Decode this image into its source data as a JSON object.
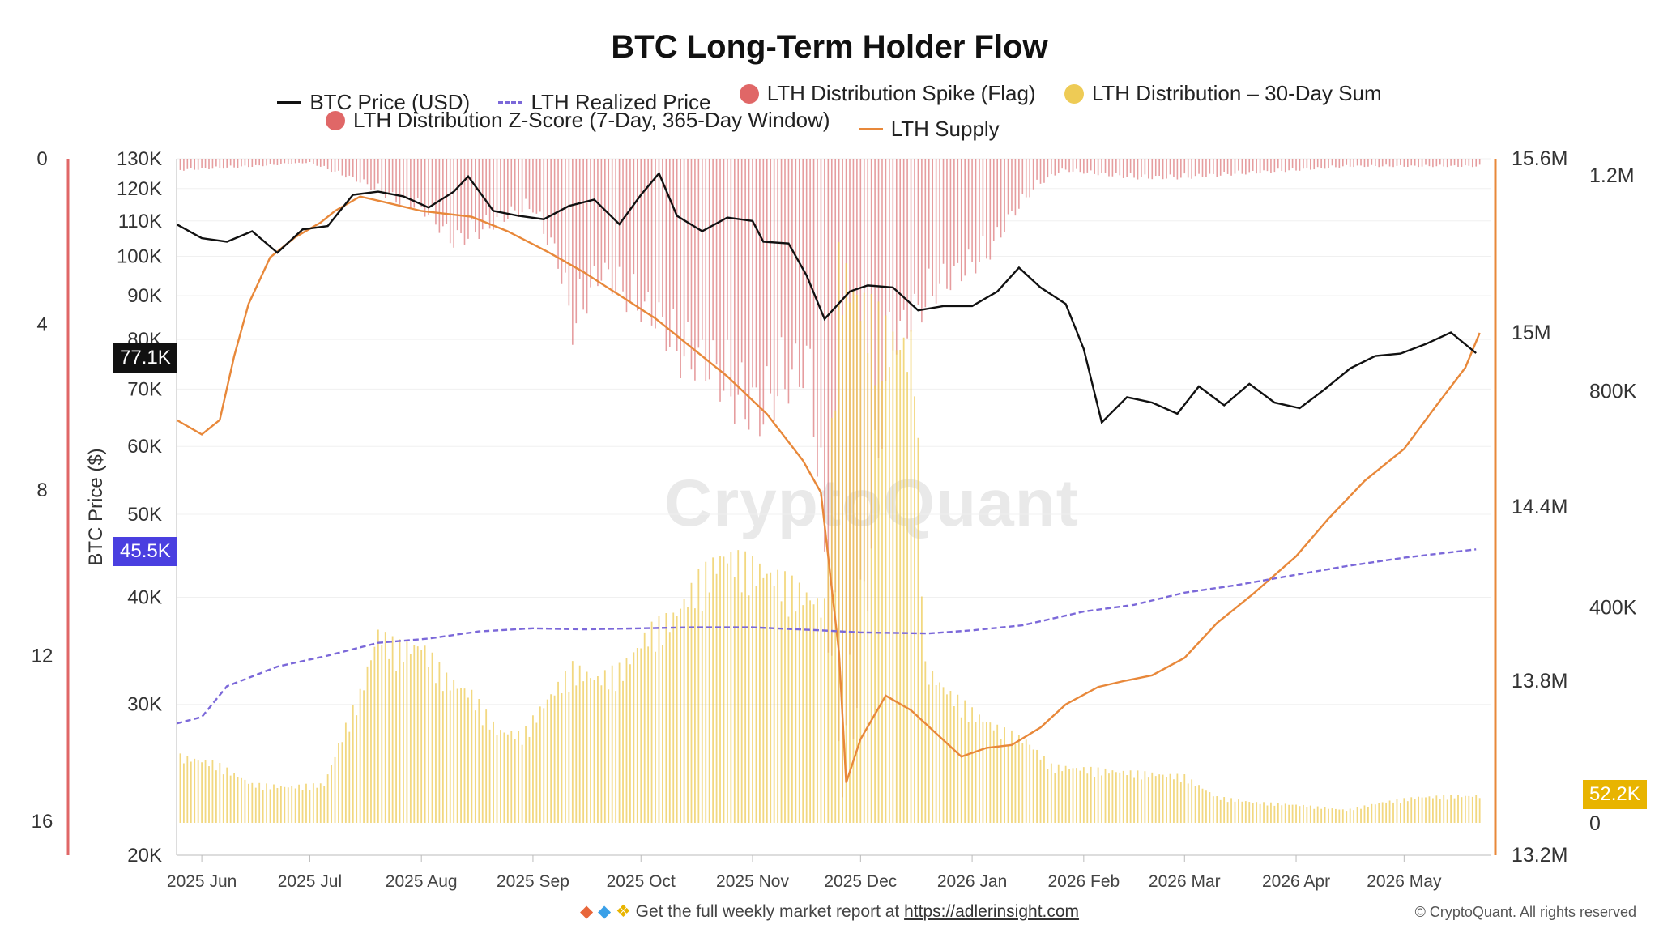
{
  "title": "BTC Long-Term Holder Flow",
  "legend": [
    {
      "label": "BTC Price (USD)",
      "kind": "line",
      "color": "#111111"
    },
    {
      "label": "LTH Realized Price",
      "kind": "dash",
      "color": "#7b68d9"
    },
    {
      "label": "LTH Distribution Spike (Flag)",
      "kind": "dot",
      "color": "#e06767"
    },
    {
      "label": "LTH Distribution – 30-Day Sum",
      "kind": "dot",
      "color": "#eecb55"
    },
    {
      "label": "LTH Distribution Z-Score (7-Day, 365-Day Window)",
      "kind": "dot",
      "color": "#e06767"
    },
    {
      "label": "LTH Supply",
      "kind": "line",
      "color": "#e8883a"
    }
  ],
  "watermark": "CryptoQuant",
  "footer": {
    "icons": [
      "orange-diamond-icon",
      "blue-gem-icon",
      "raised-hands-icon"
    ],
    "text": "Get the full weekly market report at ",
    "link": "https://adlerinsight.com"
  },
  "copyright": "© CryptoQuant. All rights reserved",
  "badges": {
    "btc_price": "77.1K",
    "realized_price": "45.5K",
    "distribution_sum": "52.2K"
  },
  "chart_data": {
    "type": "line",
    "x_ticks": [
      "2025 Jun",
      "2025 Jul",
      "2025 Aug",
      "2025 Sep",
      "2025 Oct",
      "2025 Nov",
      "2025 Dec",
      "2026 Jan",
      "2026 Feb",
      "2026 Mar",
      "2026 Apr",
      "2026 May"
    ],
    "x_range": [
      "2025-05-25",
      "2026-05-25"
    ],
    "axes": {
      "zscore": {
        "label": "",
        "ticks": [
          "0",
          "4",
          "8",
          "12",
          "16"
        ],
        "range": [
          0,
          16
        ],
        "inverted": true
      },
      "btc_price": {
        "label": "BTC Price ($)",
        "scale": "log",
        "range": [
          20000,
          130000
        ],
        "ticks": [
          "130K",
          "120K",
          "110K",
          "100K",
          "90K",
          "80K",
          "70K",
          "60K",
          "50K",
          "40K",
          "30K",
          "20K"
        ],
        "tick_values": [
          130000,
          120000,
          110000,
          100000,
          90000,
          80000,
          70000,
          60000,
          50000,
          40000,
          30000,
          20000
        ]
      },
      "lth_supply": {
        "label": "",
        "range": [
          13200000,
          15600000
        ],
        "ticks": [
          "15.6M",
          "15M",
          "14.4M",
          "13.8M",
          "13.2M"
        ],
        "tick_values": [
          15600000,
          15000000,
          14400000,
          13800000,
          13200000
        ]
      },
      "distribution_sum": {
        "label": "",
        "range": [
          0,
          1200000
        ],
        "ticks": [
          "1.2M",
          "800K",
          "400K",
          "0"
        ],
        "tick_values": [
          1200000,
          800000,
          400000,
          0
        ]
      }
    },
    "series": [
      {
        "name": "BTC Price (USD)",
        "axis": "btc_price",
        "points": [
          [
            "2025-05-25",
            109000
          ],
          [
            "2025-06-01",
            105000
          ],
          [
            "2025-06-08",
            104000
          ],
          [
            "2025-06-15",
            107000
          ],
          [
            "2025-06-22",
            101000
          ],
          [
            "2025-06-29",
            107500
          ],
          [
            "2025-07-06",
            108500
          ],
          [
            "2025-07-13",
            118000
          ],
          [
            "2025-07-20",
            119000
          ],
          [
            "2025-07-27",
            117500
          ],
          [
            "2025-08-03",
            114000
          ],
          [
            "2025-08-10",
            119000
          ],
          [
            "2025-08-14",
            124000
          ],
          [
            "2025-08-21",
            113000
          ],
          [
            "2025-08-28",
            111500
          ],
          [
            "2025-09-04",
            110500
          ],
          [
            "2025-09-11",
            114500
          ],
          [
            "2025-09-18",
            116500
          ],
          [
            "2025-09-25",
            109000
          ],
          [
            "2025-10-01",
            118000
          ],
          [
            "2025-10-06",
            125000
          ],
          [
            "2025-10-11",
            111500
          ],
          [
            "2025-10-18",
            107000
          ],
          [
            "2025-10-25",
            111000
          ],
          [
            "2025-11-01",
            110000
          ],
          [
            "2025-11-04",
            104000
          ],
          [
            "2025-11-11",
            103500
          ],
          [
            "2025-11-16",
            95000
          ],
          [
            "2025-11-21",
            84500
          ],
          [
            "2025-11-28",
            91000
          ],
          [
            "2025-12-03",
            92500
          ],
          [
            "2025-12-10",
            92000
          ],
          [
            "2025-12-17",
            86500
          ],
          [
            "2025-12-24",
            87500
          ],
          [
            "2026-01-01",
            87500
          ],
          [
            "2026-01-08",
            91000
          ],
          [
            "2026-01-14",
            97000
          ],
          [
            "2026-01-20",
            92000
          ],
          [
            "2026-01-27",
            88000
          ],
          [
            "2026-02-01",
            78000
          ],
          [
            "2026-02-06",
            64000
          ],
          [
            "2026-02-13",
            68500
          ],
          [
            "2026-02-20",
            67500
          ],
          [
            "2026-02-27",
            65500
          ],
          [
            "2026-03-05",
            70500
          ],
          [
            "2026-03-12",
            67000
          ],
          [
            "2026-03-19",
            71000
          ],
          [
            "2026-03-26",
            67500
          ],
          [
            "2026-04-02",
            66500
          ],
          [
            "2026-04-09",
            70000
          ],
          [
            "2026-04-16",
            74000
          ],
          [
            "2026-04-23",
            76500
          ],
          [
            "2026-04-30",
            77000
          ],
          [
            "2026-05-07",
            79000
          ],
          [
            "2026-05-14",
            81500
          ],
          [
            "2026-05-21",
            77100
          ]
        ]
      },
      {
        "name": "LTH Realized Price",
        "axis": "btc_price",
        "points": [
          [
            "2025-05-25",
            28500
          ],
          [
            "2025-06-01",
            29000
          ],
          [
            "2025-06-08",
            31500
          ],
          [
            "2025-06-22",
            33200
          ],
          [
            "2025-07-06",
            34200
          ],
          [
            "2025-07-20",
            35400
          ],
          [
            "2025-08-03",
            35800
          ],
          [
            "2025-08-17",
            36500
          ],
          [
            "2025-09-01",
            36800
          ],
          [
            "2025-09-15",
            36700
          ],
          [
            "2025-10-01",
            36800
          ],
          [
            "2025-10-15",
            36900
          ],
          [
            "2025-11-01",
            36900
          ],
          [
            "2025-11-20",
            36600
          ],
          [
            "2025-12-01",
            36400
          ],
          [
            "2025-12-20",
            36300
          ],
          [
            "2026-01-01",
            36600
          ],
          [
            "2026-01-15",
            37100
          ],
          [
            "2026-02-01",
            38500
          ],
          [
            "2026-02-15",
            39200
          ],
          [
            "2026-03-01",
            40500
          ],
          [
            "2026-03-15",
            41300
          ],
          [
            "2026-04-01",
            42500
          ],
          [
            "2026-04-15",
            43500
          ],
          [
            "2026-05-01",
            44500
          ],
          [
            "2026-05-21",
            45500
          ]
        ]
      },
      {
        "name": "LTH Supply",
        "axis": "lth_supply",
        "points": [
          [
            "2025-05-25",
            14700000
          ],
          [
            "2025-06-01",
            14650000
          ],
          [
            "2025-06-06",
            14700000
          ],
          [
            "2025-06-10",
            14920000
          ],
          [
            "2025-06-14",
            15100000
          ],
          [
            "2025-06-20",
            15260000
          ],
          [
            "2025-06-27",
            15330000
          ],
          [
            "2025-07-04",
            15380000
          ],
          [
            "2025-07-08",
            15420000
          ],
          [
            "2025-07-15",
            15470000
          ],
          [
            "2025-07-22",
            15450000
          ],
          [
            "2025-08-01",
            15420000
          ],
          [
            "2025-08-15",
            15400000
          ],
          [
            "2025-08-25",
            15350000
          ],
          [
            "2025-09-05",
            15280000
          ],
          [
            "2025-09-15",
            15210000
          ],
          [
            "2025-09-25",
            15130000
          ],
          [
            "2025-10-05",
            15050000
          ],
          [
            "2025-10-15",
            14950000
          ],
          [
            "2025-10-25",
            14850000
          ],
          [
            "2025-11-05",
            14720000
          ],
          [
            "2025-11-15",
            14560000
          ],
          [
            "2025-11-20",
            14450000
          ],
          [
            "2025-11-25",
            13900000
          ],
          [
            "2025-11-27",
            13450000
          ],
          [
            "2025-12-01",
            13600000
          ],
          [
            "2025-12-08",
            13750000
          ],
          [
            "2025-12-15",
            13700000
          ],
          [
            "2025-12-22",
            13620000
          ],
          [
            "2025-12-29",
            13540000
          ],
          [
            "2026-01-05",
            13570000
          ],
          [
            "2026-01-12",
            13580000
          ],
          [
            "2026-01-20",
            13640000
          ],
          [
            "2026-01-27",
            13720000
          ],
          [
            "2026-02-05",
            13780000
          ],
          [
            "2026-02-12",
            13800000
          ],
          [
            "2026-02-20",
            13820000
          ],
          [
            "2026-03-01",
            13880000
          ],
          [
            "2026-03-10",
            14000000
          ],
          [
            "2026-03-20",
            14100000
          ],
          [
            "2026-04-01",
            14230000
          ],
          [
            "2026-04-10",
            14360000
          ],
          [
            "2026-04-20",
            14490000
          ],
          [
            "2026-05-01",
            14600000
          ],
          [
            "2026-05-10",
            14750000
          ],
          [
            "2026-05-18",
            14880000
          ],
          [
            "2026-05-22",
            15000000
          ]
        ]
      },
      {
        "name": "LTH Distribution – 30-Day Sum",
        "axis": "distribution_sum",
        "kind": "bars",
        "points": [
          [
            "2025-05-25",
            130000
          ],
          [
            "2025-06-05",
            115000
          ],
          [
            "2025-06-15",
            75000
          ],
          [
            "2025-06-25",
            70000
          ],
          [
            "2025-07-05",
            75000
          ],
          [
            "2025-07-10",
            170000
          ],
          [
            "2025-07-15",
            250000
          ],
          [
            "2025-07-20",
            370000
          ],
          [
            "2025-07-25",
            340000
          ],
          [
            "2025-08-01",
            345000
          ],
          [
            "2025-08-08",
            280000
          ],
          [
            "2025-08-15",
            250000
          ],
          [
            "2025-08-22",
            180000
          ],
          [
            "2025-08-29",
            170000
          ],
          [
            "2025-09-05",
            240000
          ],
          [
            "2025-09-12",
            300000
          ],
          [
            "2025-09-19",
            280000
          ],
          [
            "2025-09-26",
            300000
          ],
          [
            "2025-10-03",
            370000
          ],
          [
            "2025-10-10",
            400000
          ],
          [
            "2025-10-17",
            470000
          ],
          [
            "2025-10-24",
            520000
          ],
          [
            "2025-10-31",
            500000
          ],
          [
            "2025-11-07",
            480000
          ],
          [
            "2025-11-14",
            450000
          ],
          [
            "2025-11-21",
            420000
          ],
          [
            "2025-11-25",
            1080000
          ],
          [
            "2025-12-02",
            1000000
          ],
          [
            "2025-12-09",
            940000
          ],
          [
            "2025-12-16",
            920000
          ],
          [
            "2025-12-19",
            300000
          ],
          [
            "2025-12-26",
            250000
          ],
          [
            "2026-01-02",
            210000
          ],
          [
            "2026-01-09",
            180000
          ],
          [
            "2026-01-16",
            160000
          ],
          [
            "2026-01-23",
            110000
          ],
          [
            "2026-02-01",
            105000
          ],
          [
            "2026-02-10",
            100000
          ],
          [
            "2026-02-20",
            95000
          ],
          [
            "2026-03-01",
            90000
          ],
          [
            "2026-03-10",
            50000
          ],
          [
            "2026-03-20",
            40000
          ],
          [
            "2026-04-01",
            35000
          ],
          [
            "2026-04-15",
            25000
          ],
          [
            "2026-04-25",
            40000
          ],
          [
            "2026-05-05",
            50000
          ],
          [
            "2026-05-15",
            52000
          ],
          [
            "2026-05-21",
            52200
          ]
        ]
      },
      {
        "name": "LTH Distribution Z-Score (7-Day, 365-Day Window)",
        "axis": "zscore",
        "kind": "bars",
        "points": [
          [
            "2025-05-25",
            0.3
          ],
          [
            "2025-06-15",
            0.2
          ],
          [
            "2025-07-01",
            0.1
          ],
          [
            "2025-07-15",
            0.6
          ],
          [
            "2025-07-25",
            1.1
          ],
          [
            "2025-08-01",
            1.3
          ],
          [
            "2025-08-10",
            2.2
          ],
          [
            "2025-08-18",
            1.9
          ],
          [
            "2025-08-25",
            1.5
          ],
          [
            "2025-09-01",
            1.3
          ],
          [
            "2025-09-08",
            2.7
          ],
          [
            "2025-09-12",
            4.5
          ],
          [
            "2025-09-20",
            3.0
          ],
          [
            "2025-09-28",
            3.8
          ],
          [
            "2025-10-05",
            4.2
          ],
          [
            "2025-10-12",
            5.3
          ],
          [
            "2025-10-20",
            5.5
          ],
          [
            "2025-10-27",
            6.4
          ],
          [
            "2025-11-03",
            6.8
          ],
          [
            "2025-11-10",
            6.0
          ],
          [
            "2025-11-17",
            5.5
          ],
          [
            "2025-11-24",
            14.5
          ],
          [
            "2025-11-27",
            16.0
          ],
          [
            "2025-12-02",
            12.0
          ],
          [
            "2025-12-09",
            5.0
          ],
          [
            "2025-12-16",
            4.2
          ],
          [
            "2025-12-22",
            3.5
          ],
          [
            "2025-12-29",
            3.0
          ],
          [
            "2026-01-05",
            2.6
          ],
          [
            "2026-01-12",
            1.5
          ],
          [
            "2026-01-19",
            0.7
          ],
          [
            "2026-01-26",
            0.3
          ],
          [
            "2026-02-05",
            0.4
          ],
          [
            "2026-02-15",
            0.5
          ],
          [
            "2026-03-01",
            0.5
          ],
          [
            "2026-03-15",
            0.4
          ],
          [
            "2026-04-01",
            0.3
          ],
          [
            "2026-04-15",
            0.2
          ],
          [
            "2026-05-01",
            0.2
          ],
          [
            "2026-05-21",
            0.2
          ]
        ]
      }
    ],
    "grid": true,
    "legend_position": "top-center"
  }
}
